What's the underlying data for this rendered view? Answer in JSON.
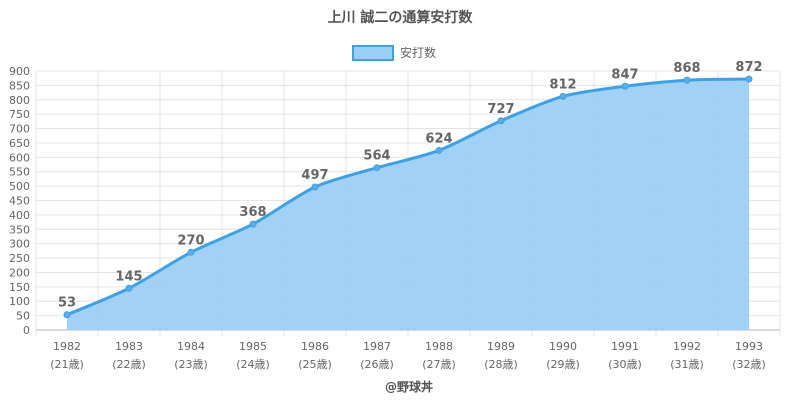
{
  "chart_data": {
    "type": "area",
    "title": "上川 誠二の通算安打数",
    "legend": {
      "label": "安打数",
      "position": "top-center"
    },
    "categories": [
      "1982",
      "1983",
      "1984",
      "1985",
      "1986",
      "1987",
      "1988",
      "1989",
      "1990",
      "1991",
      "1992",
      "1993"
    ],
    "age_labels": [
      "(21歳)",
      "(22歳)",
      "(23歳)",
      "(24歳)",
      "(25歳)",
      "(26歳)",
      "(27歳)",
      "(28歳)",
      "(29歳)",
      "(30歳)",
      "(31歳)",
      "(32歳)"
    ],
    "series": [
      {
        "name": "安打数",
        "values": [
          53,
          145,
          270,
          368,
          497,
          564,
          624,
          727,
          812,
          847,
          868,
          872
        ]
      }
    ],
    "ylim": [
      0,
      900
    ],
    "ystep": 50,
    "grid": true,
    "colors": {
      "line": "#3fa0e6",
      "fill": "#9ccff5",
      "point": "#5aaee8"
    }
  },
  "credit": "@野球丼"
}
